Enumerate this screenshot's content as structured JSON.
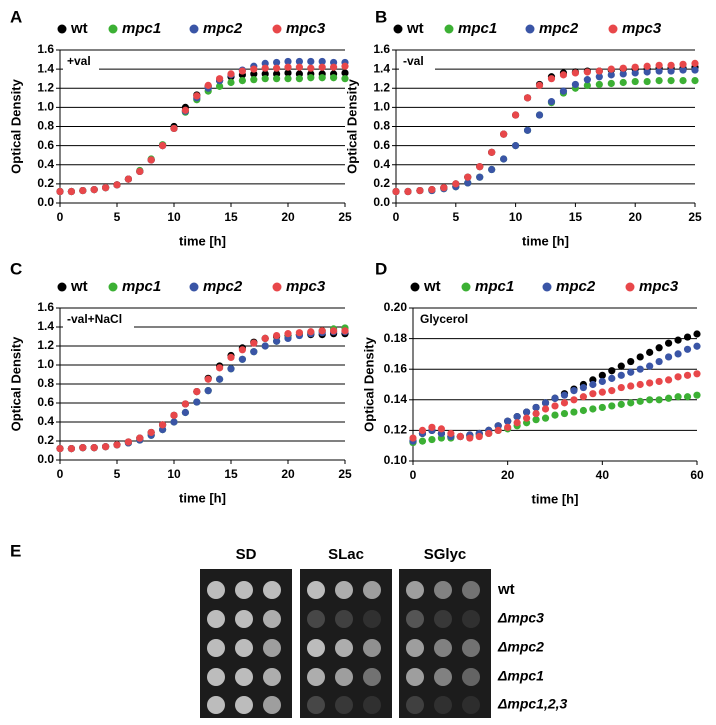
{
  "chart_data": [
    {
      "type": "scatter",
      "panel": "A",
      "annotation": "+val",
      "xlabel": "time [h]",
      "ylabel": "Optical Density",
      "x": [
        0,
        1,
        2,
        3,
        4,
        5,
        6,
        7,
        8,
        9,
        10,
        11,
        12,
        13,
        14,
        15,
        16,
        17,
        18,
        19,
        20,
        21,
        22,
        23,
        24,
        25
      ],
      "series": [
        {
          "name": "wt",
          "color": "#000000",
          "values": [
            0.12,
            0.12,
            0.13,
            0.14,
            0.16,
            0.19,
            0.25,
            0.33,
            0.45,
            0.6,
            0.8,
            1.0,
            1.13,
            1.22,
            1.28,
            1.32,
            1.34,
            1.35,
            1.35,
            1.35,
            1.36,
            1.35,
            1.35,
            1.35,
            1.35,
            1.36
          ]
        },
        {
          "name": "mpc1",
          "color": "#3cb034",
          "values": [
            0.12,
            0.12,
            0.13,
            0.14,
            0.16,
            0.19,
            0.25,
            0.34,
            0.46,
            0.61,
            0.78,
            0.95,
            1.08,
            1.17,
            1.22,
            1.26,
            1.28,
            1.29,
            1.3,
            1.3,
            1.3,
            1.3,
            1.31,
            1.31,
            1.31,
            1.3
          ]
        },
        {
          "name": "mpc2",
          "color": "#3a55a6",
          "values": [
            0.12,
            0.12,
            0.13,
            0.14,
            0.16,
            0.19,
            0.25,
            0.33,
            0.45,
            0.6,
            0.78,
            0.96,
            1.1,
            1.2,
            1.28,
            1.34,
            1.39,
            1.43,
            1.46,
            1.47,
            1.48,
            1.48,
            1.48,
            1.48,
            1.47,
            1.47
          ]
        },
        {
          "name": "mpc3",
          "color": "#e8474a",
          "values": [
            0.12,
            0.12,
            0.13,
            0.14,
            0.16,
            0.19,
            0.25,
            0.33,
            0.45,
            0.6,
            0.78,
            0.97,
            1.12,
            1.23,
            1.3,
            1.35,
            1.38,
            1.4,
            1.41,
            1.41,
            1.42,
            1.42,
            1.41,
            1.42,
            1.42,
            1.43
          ]
        }
      ],
      "xlim": [
        0,
        25
      ],
      "ylim": [
        0,
        1.6
      ],
      "xticks": [
        0,
        5,
        10,
        15,
        20,
        25
      ],
      "yticks": [
        {
          "value": 0,
          "label": "0.0"
        },
        0.2,
        0.4,
        0.6,
        0.8,
        {
          "value": 1,
          "label": "1.0"
        },
        1.2,
        1.4,
        1.6
      ],
      "grid": true,
      "legend": "top"
    },
    {
      "type": "scatter",
      "panel": "B",
      "annotation": "-val",
      "xlabel": "time [h]",
      "ylabel": "Optical Density",
      "x": [
        0,
        1,
        2,
        3,
        4,
        5,
        6,
        7,
        8,
        9,
        10,
        11,
        12,
        13,
        14,
        15,
        16,
        17,
        18,
        19,
        20,
        21,
        22,
        23,
        24,
        25
      ],
      "series": [
        {
          "name": "wt",
          "color": "#000000",
          "values": [
            0.12,
            0.12,
            0.13,
            0.14,
            0.16,
            0.2,
            0.27,
            0.38,
            0.53,
            0.72,
            0.92,
            1.1,
            1.24,
            1.32,
            1.36,
            1.37,
            1.38,
            1.38,
            1.39,
            1.4,
            1.4,
            1.4,
            1.41,
            1.41,
            1.41,
            1.42
          ]
        },
        {
          "name": "mpc1",
          "color": "#3cb034",
          "values": [
            0.12,
            0.12,
            0.13,
            0.13,
            0.15,
            0.17,
            0.21,
            0.27,
            0.35,
            0.46,
            0.6,
            0.76,
            0.92,
            1.05,
            1.15,
            1.2,
            1.23,
            1.24,
            1.25,
            1.26,
            1.27,
            1.27,
            1.28,
            1.28,
            1.28,
            1.28
          ]
        },
        {
          "name": "mpc2",
          "color": "#3a55a6",
          "values": [
            0.12,
            0.12,
            0.13,
            0.13,
            0.15,
            0.17,
            0.21,
            0.27,
            0.35,
            0.46,
            0.6,
            0.76,
            0.92,
            1.06,
            1.17,
            1.24,
            1.29,
            1.32,
            1.34,
            1.35,
            1.36,
            1.37,
            1.38,
            1.38,
            1.39,
            1.39
          ]
        },
        {
          "name": "mpc3",
          "color": "#e8474a",
          "values": [
            0.12,
            0.12,
            0.13,
            0.14,
            0.16,
            0.2,
            0.27,
            0.38,
            0.53,
            0.72,
            0.92,
            1.1,
            1.23,
            1.3,
            1.34,
            1.36,
            1.37,
            1.38,
            1.4,
            1.41,
            1.42,
            1.43,
            1.44,
            1.44,
            1.45,
            1.46
          ]
        }
      ],
      "xlim": [
        0,
        25
      ],
      "ylim": [
        0,
        1.6
      ],
      "xticks": [
        0,
        5,
        10,
        15,
        20,
        25
      ],
      "yticks": [
        {
          "value": 0,
          "label": "0.0"
        },
        0.2,
        0.4,
        0.6,
        0.8,
        {
          "value": 1,
          "label": "1.0"
        },
        1.2,
        1.4,
        1.6
      ],
      "grid": true,
      "legend": "top"
    },
    {
      "type": "scatter",
      "panel": "C",
      "annotation": "-val+NaCl",
      "xlabel": "time [h]",
      "ylabel": "Optical Density",
      "x": [
        0,
        1,
        2,
        3,
        4,
        5,
        6,
        7,
        8,
        9,
        10,
        11,
        12,
        13,
        14,
        15,
        16,
        17,
        18,
        19,
        20,
        21,
        22,
        23,
        24,
        25
      ],
      "series": [
        {
          "name": "wt",
          "color": "#000000",
          "values": [
            0.12,
            0.12,
            0.13,
            0.13,
            0.14,
            0.16,
            0.19,
            0.23,
            0.29,
            0.37,
            0.47,
            0.59,
            0.72,
            0.86,
            0.99,
            1.1,
            1.18,
            1.24,
            1.28,
            1.3,
            1.31,
            1.32,
            1.32,
            1.32,
            1.33,
            1.33
          ]
        },
        {
          "name": "mpc1",
          "color": "#3cb034",
          "values": [
            0.12,
            0.12,
            0.13,
            0.13,
            0.14,
            0.16,
            0.18,
            0.21,
            0.26,
            0.32,
            0.4,
            0.5,
            0.61,
            0.73,
            0.85,
            0.96,
            1.06,
            1.14,
            1.2,
            1.25,
            1.29,
            1.32,
            1.34,
            1.36,
            1.38,
            1.39
          ]
        },
        {
          "name": "mpc2",
          "color": "#3a55a6",
          "values": [
            0.12,
            0.12,
            0.13,
            0.13,
            0.14,
            0.16,
            0.18,
            0.21,
            0.26,
            0.32,
            0.4,
            0.5,
            0.61,
            0.73,
            0.85,
            0.96,
            1.06,
            1.14,
            1.2,
            1.25,
            1.28,
            1.31,
            1.33,
            1.34,
            1.35,
            1.35
          ]
        },
        {
          "name": "mpc3",
          "color": "#e8474a",
          "values": [
            0.12,
            0.12,
            0.13,
            0.13,
            0.14,
            0.16,
            0.19,
            0.23,
            0.29,
            0.37,
            0.47,
            0.59,
            0.72,
            0.85,
            0.97,
            1.08,
            1.16,
            1.23,
            1.28,
            1.31,
            1.33,
            1.34,
            1.35,
            1.36,
            1.36,
            1.36
          ]
        }
      ],
      "xlim": [
        0,
        25
      ],
      "ylim": [
        0,
        1.6
      ],
      "xticks": [
        0,
        5,
        10,
        15,
        20,
        25
      ],
      "yticks": [
        {
          "value": 0,
          "label": "0.0"
        },
        0.2,
        0.4,
        0.6,
        0.8,
        {
          "value": 1,
          "label": "1.0"
        },
        1.2,
        1.4,
        1.6
      ],
      "grid": true,
      "legend": "top"
    },
    {
      "type": "scatter",
      "panel": "D",
      "annotation": "Glycerol",
      "xlabel": "time [h]",
      "ylabel": "Optical Density",
      "x": [
        0,
        2,
        4,
        6,
        8,
        10,
        12,
        14,
        16,
        18,
        20,
        22,
        24,
        26,
        28,
        30,
        32,
        34,
        36,
        38,
        40,
        42,
        44,
        46,
        48,
        50,
        52,
        54,
        56,
        58,
        60
      ],
      "series": [
        {
          "name": "wt",
          "color": "#000000",
          "values": [
            0.113,
            0.118,
            0.12,
            0.118,
            0.116,
            0.116,
            0.117,
            0.118,
            0.12,
            0.123,
            0.126,
            0.129,
            0.132,
            0.135,
            0.138,
            0.141,
            0.144,
            0.147,
            0.15,
            0.153,
            0.156,
            0.159,
            0.162,
            0.165,
            0.168,
            0.171,
            0.174,
            0.177,
            0.179,
            0.181,
            0.183
          ]
        },
        {
          "name": "mpc1",
          "color": "#3cb034",
          "values": [
            0.112,
            0.113,
            0.114,
            0.115,
            0.115,
            0.116,
            0.116,
            0.117,
            0.118,
            0.12,
            0.121,
            0.123,
            0.125,
            0.127,
            0.128,
            0.13,
            0.131,
            0.132,
            0.133,
            0.134,
            0.135,
            0.136,
            0.137,
            0.138,
            0.139,
            0.14,
            0.14,
            0.141,
            0.142,
            0.142,
            0.143
          ]
        },
        {
          "name": "mpc2",
          "color": "#3a55a6",
          "values": [
            0.113,
            0.118,
            0.12,
            0.118,
            0.116,
            0.116,
            0.117,
            0.118,
            0.12,
            0.123,
            0.126,
            0.129,
            0.132,
            0.135,
            0.138,
            0.141,
            0.143,
            0.146,
            0.148,
            0.15,
            0.152,
            0.154,
            0.156,
            0.158,
            0.16,
            0.162,
            0.165,
            0.168,
            0.17,
            0.173,
            0.175
          ]
        },
        {
          "name": "mpc3",
          "color": "#e8474a",
          "values": [
            0.115,
            0.12,
            0.122,
            0.121,
            0.118,
            0.116,
            0.115,
            0.116,
            0.118,
            0.12,
            0.122,
            0.125,
            0.128,
            0.131,
            0.134,
            0.136,
            0.138,
            0.14,
            0.142,
            0.144,
            0.145,
            0.146,
            0.148,
            0.149,
            0.15,
            0.151,
            0.152,
            0.153,
            0.155,
            0.156,
            0.157
          ]
        }
      ],
      "xlim": [
        0,
        60
      ],
      "ylim": [
        0.1,
        0.2
      ],
      "xticks": [
        0,
        20,
        40,
        60
      ],
      "yticks": [
        {
          "value": 0.1,
          "label": "0.10"
        },
        0.12,
        0.14,
        0.16,
        0.18,
        {
          "value": 0.2,
          "label": "0.20"
        }
      ],
      "grid": true,
      "legend": "top"
    }
  ],
  "panel_e": {
    "panel": "E",
    "columns": [
      "SD",
      "SLac",
      "SGlyc"
    ],
    "rows": [
      "wt",
      "Δmpc3",
      "Δmpc2",
      "Δmpc1",
      "Δmpc1,2,3"
    ]
  }
}
